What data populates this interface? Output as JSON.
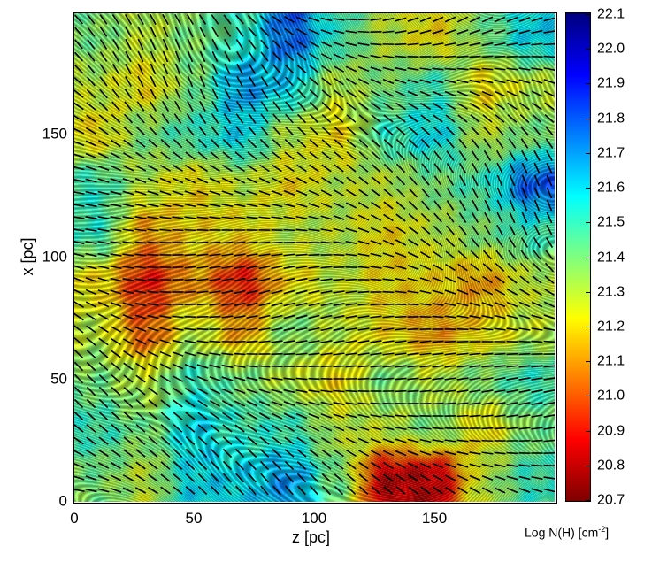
{
  "chart_data": {
    "type": "heatmap",
    "xlabel": "z [pc]",
    "ylabel": "x [pc]",
    "xlim": [
      0,
      200
    ],
    "ylim": [
      0,
      200
    ],
    "xticks": [
      "0",
      "50",
      "100",
      "150"
    ],
    "yticks": [
      "0",
      "50",
      "100",
      "150"
    ],
    "colorbar": {
      "label": "Log N(H) [cm",
      "label_sup": "-2",
      "label_end": "]",
      "range": [
        20.7,
        22.1
      ],
      "colormap": "jet-reversed",
      "ticks": [
        "22.1",
        "22.0",
        "21.9",
        "21.8",
        "21.7",
        "21.6",
        "21.5",
        "21.4",
        "21.3",
        "21.2",
        "21.1",
        "21.0",
        "20.9",
        "20.8",
        "20.7"
      ]
    },
    "grid_note_z_centers": [
      10,
      30,
      50,
      70,
      90,
      110,
      130,
      150,
      170,
      190
    ],
    "grid_note_x_centers": [
      190,
      170,
      150,
      130,
      110,
      90,
      70,
      50,
      30,
      10
    ],
    "values": [
      [
        21.4,
        21.3,
        21.4,
        21.5,
        21.8,
        21.5,
        21.3,
        21.2,
        21.4,
        21.6
      ],
      [
        21.3,
        21.2,
        21.4,
        21.7,
        21.6,
        21.3,
        21.4,
        21.5,
        21.2,
        21.3
      ],
      [
        21.2,
        21.4,
        21.5,
        21.6,
        21.3,
        21.2,
        21.5,
        21.6,
        21.3,
        21.4
      ],
      [
        21.5,
        21.3,
        21.2,
        21.3,
        21.2,
        21.3,
        21.3,
        21.4,
        21.5,
        21.8
      ],
      [
        21.5,
        21.1,
        21.2,
        21.2,
        21.3,
        21.3,
        21.2,
        21.3,
        21.4,
        21.5
      ],
      [
        21.2,
        20.9,
        21.1,
        20.9,
        21.2,
        21.3,
        21.2,
        21.2,
        21.1,
        21.3
      ],
      [
        21.3,
        21.0,
        21.3,
        21.1,
        21.4,
        21.3,
        21.2,
        21.1,
        21.2,
        21.3
      ],
      [
        21.4,
        21.3,
        21.5,
        21.4,
        21.3,
        21.2,
        21.4,
        21.3,
        21.4,
        21.5
      ],
      [
        21.5,
        21.4,
        21.6,
        21.5,
        21.5,
        21.3,
        21.3,
        21.4,
        21.2,
        21.4
      ],
      [
        21.4,
        21.3,
        21.6,
        21.6,
        21.7,
        21.4,
        20.8,
        20.8,
        21.3,
        21.5
      ]
    ],
    "overlay": "polarization vectors (black segments) on line-integral-convolution texture"
  }
}
